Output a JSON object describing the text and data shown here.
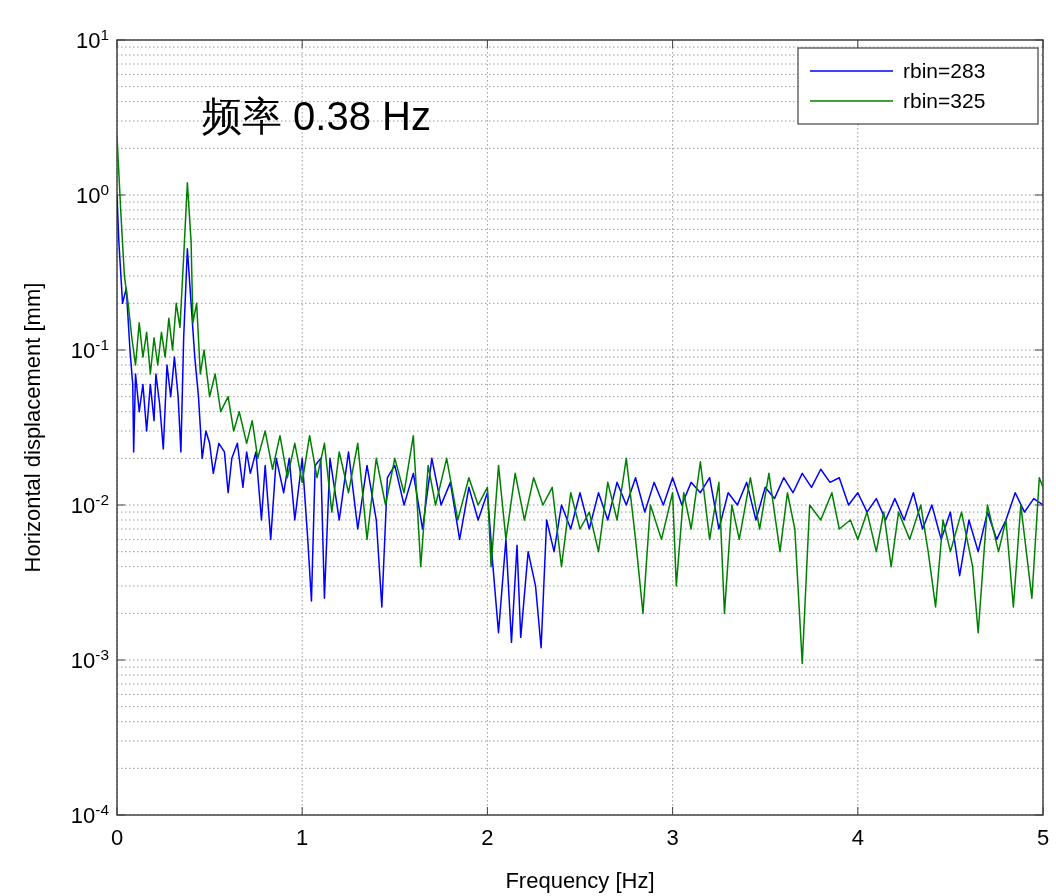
{
  "chart_data": {
    "type": "line",
    "xlabel": "Frequency [Hz]",
    "ylabel": "Horizontal displacement [mm]",
    "annotations": [
      "频率 0.38 Hz"
    ],
    "log": "y",
    "grid": true,
    "legend": "top right",
    "xlim": [
      0,
      5
    ],
    "xticks": [
      0,
      1,
      2,
      3,
      4,
      5
    ],
    "ylim": [
      0.0001,
      10
    ],
    "yticks": [
      {
        "value": 0.0001,
        "label": "10$^{-4}$"
      },
      {
        "value": 0.001,
        "label": "10$^{-3}$"
      },
      {
        "value": 0.01,
        "label": "10$^{-2}$"
      },
      {
        "value": 0.1,
        "label": "10$^{-1}$"
      },
      {
        "value": 1,
        "label": "10$^{0}$"
      },
      {
        "value": 10,
        "label": "10$^{1}$"
      }
    ],
    "series": [
      {
        "name": "rbin=283",
        "color": "#0000ff",
        "x": [
          0,
          0.01,
          0.03,
          0.05,
          0.07,
          0.085,
          0.09,
          0.1,
          0.12,
          0.14,
          0.16,
          0.18,
          0.2,
          0.21,
          0.23,
          0.25,
          0.27,
          0.29,
          0.31,
          0.33,
          0.345,
          0.36,
          0.38,
          0.4,
          0.42,
          0.44,
          0.46,
          0.48,
          0.5,
          0.52,
          0.55,
          0.58,
          0.6,
          0.62,
          0.65,
          0.68,
          0.7,
          0.72,
          0.75,
          0.78,
          0.8,
          0.83,
          0.86,
          0.9,
          0.93,
          0.96,
          1.0,
          1.03,
          1.05,
          1.07,
          1.1,
          1.12,
          1.15,
          1.2,
          1.25,
          1.3,
          1.35,
          1.4,
          1.43,
          1.46,
          1.5,
          1.55,
          1.6,
          1.65,
          1.7,
          1.75,
          1.8,
          1.85,
          1.9,
          1.95,
          2.0,
          2.03,
          2.06,
          2.1,
          2.13,
          2.16,
          2.18,
          2.22,
          2.26,
          2.29,
          2.32,
          2.36,
          2.4,
          2.45,
          2.5,
          2.55,
          2.6,
          2.65,
          2.7,
          2.75,
          2.8,
          2.85,
          2.9,
          2.95,
          3.0,
          3.05,
          3.1,
          3.15,
          3.2,
          3.25,
          3.3,
          3.35,
          3.4,
          3.45,
          3.5,
          3.55,
          3.6,
          3.65,
          3.7,
          3.75,
          3.8,
          3.85,
          3.9,
          3.95,
          4.0,
          4.05,
          4.1,
          4.15,
          4.2,
          4.25,
          4.3,
          4.35,
          4.4,
          4.45,
          4.5,
          4.55,
          4.6,
          4.65,
          4.7,
          4.75,
          4.8,
          4.85,
          4.9,
          4.95,
          5.0
        ],
        "values": [
          1.0,
          0.5,
          0.2,
          0.25,
          0.1,
          0.06,
          0.022,
          0.07,
          0.04,
          0.06,
          0.03,
          0.06,
          0.035,
          0.07,
          0.045,
          0.023,
          0.08,
          0.05,
          0.09,
          0.05,
          0.022,
          0.12,
          0.45,
          0.2,
          0.09,
          0.05,
          0.02,
          0.03,
          0.025,
          0.016,
          0.025,
          0.022,
          0.012,
          0.02,
          0.025,
          0.013,
          0.022,
          0.016,
          0.022,
          0.008,
          0.018,
          0.006,
          0.02,
          0.012,
          0.02,
          0.008,
          0.02,
          0.006,
          0.0024,
          0.018,
          0.02,
          0.0025,
          0.02,
          0.008,
          0.022,
          0.007,
          0.018,
          0.008,
          0.0022,
          0.015,
          0.018,
          0.01,
          0.016,
          0.007,
          0.02,
          0.01,
          0.014,
          0.006,
          0.013,
          0.008,
          0.012,
          0.004,
          0.0015,
          0.006,
          0.0013,
          0.0055,
          0.0014,
          0.005,
          0.003,
          0.0012,
          0.008,
          0.005,
          0.01,
          0.007,
          0.012,
          0.007,
          0.012,
          0.008,
          0.014,
          0.01,
          0.015,
          0.009,
          0.014,
          0.01,
          0.015,
          0.01,
          0.014,
          0.012,
          0.015,
          0.007,
          0.012,
          0.01,
          0.014,
          0.008,
          0.013,
          0.011,
          0.015,
          0.012,
          0.016,
          0.013,
          0.017,
          0.014,
          0.015,
          0.01,
          0.012,
          0.009,
          0.011,
          0.008,
          0.011,
          0.008,
          0.012,
          0.007,
          0.01,
          0.006,
          0.009,
          0.0035,
          0.008,
          0.005,
          0.009,
          0.006,
          0.008,
          0.012,
          0.009,
          0.011,
          0.01
        ]
      },
      {
        "name": "rbin=325",
        "color": "#008000",
        "x": [
          0,
          0.02,
          0.04,
          0.06,
          0.08,
          0.1,
          0.12,
          0.14,
          0.16,
          0.18,
          0.2,
          0.22,
          0.24,
          0.26,
          0.28,
          0.3,
          0.32,
          0.34,
          0.36,
          0.38,
          0.4,
          0.41,
          0.43,
          0.45,
          0.47,
          0.5,
          0.53,
          0.56,
          0.6,
          0.63,
          0.66,
          0.7,
          0.73,
          0.76,
          0.8,
          0.84,
          0.88,
          0.92,
          0.96,
          1.0,
          1.04,
          1.08,
          1.12,
          1.16,
          1.2,
          1.25,
          1.3,
          1.35,
          1.4,
          1.45,
          1.5,
          1.55,
          1.6,
          1.64,
          1.68,
          1.72,
          1.78,
          1.84,
          1.9,
          1.95,
          2.0,
          2.02,
          2.06,
          2.1,
          2.15,
          2.2,
          2.25,
          2.3,
          2.35,
          2.4,
          2.45,
          2.5,
          2.55,
          2.6,
          2.65,
          2.7,
          2.75,
          2.8,
          2.84,
          2.88,
          2.94,
          3.0,
          3.02,
          3.06,
          3.1,
          3.15,
          3.2,
          3.25,
          3.28,
          3.32,
          3.36,
          3.42,
          3.47,
          3.52,
          3.58,
          3.62,
          3.66,
          3.7,
          3.74,
          3.8,
          3.86,
          3.9,
          3.96,
          4.0,
          4.05,
          4.1,
          4.14,
          4.18,
          4.22,
          4.28,
          4.34,
          4.38,
          4.42,
          4.46,
          4.5,
          4.56,
          4.62,
          4.65,
          4.7,
          4.76,
          4.8,
          4.84,
          4.88,
          4.94,
          4.98,
          5.0
        ],
        "values": [
          2.4,
          0.8,
          0.3,
          0.2,
          0.12,
          0.08,
          0.15,
          0.09,
          0.13,
          0.07,
          0.12,
          0.08,
          0.13,
          0.09,
          0.16,
          0.1,
          0.2,
          0.14,
          0.4,
          1.2,
          0.5,
          0.15,
          0.2,
          0.07,
          0.1,
          0.05,
          0.07,
          0.04,
          0.05,
          0.03,
          0.04,
          0.025,
          0.035,
          0.02,
          0.03,
          0.017,
          0.028,
          0.015,
          0.025,
          0.014,
          0.028,
          0.015,
          0.025,
          0.009,
          0.022,
          0.012,
          0.025,
          0.006,
          0.02,
          0.01,
          0.02,
          0.012,
          0.028,
          0.004,
          0.018,
          0.01,
          0.02,
          0.008,
          0.015,
          0.01,
          0.013,
          0.004,
          0.018,
          0.006,
          0.016,
          0.008,
          0.015,
          0.01,
          0.013,
          0.004,
          0.012,
          0.007,
          0.009,
          0.005,
          0.014,
          0.008,
          0.02,
          0.006,
          0.002,
          0.01,
          0.006,
          0.012,
          0.003,
          0.012,
          0.007,
          0.019,
          0.006,
          0.014,
          0.002,
          0.01,
          0.006,
          0.015,
          0.007,
          0.016,
          0.005,
          0.012,
          0.007,
          0.00095,
          0.01,
          0.008,
          0.012,
          0.007,
          0.008,
          0.006,
          0.009,
          0.005,
          0.009,
          0.004,
          0.009,
          0.006,
          0.01,
          0.005,
          0.0022,
          0.008,
          0.005,
          0.009,
          0.004,
          0.0015,
          0.01,
          0.005,
          0.008,
          0.0022,
          0.01,
          0.0025,
          0.015,
          0.013
        ]
      }
    ]
  }
}
